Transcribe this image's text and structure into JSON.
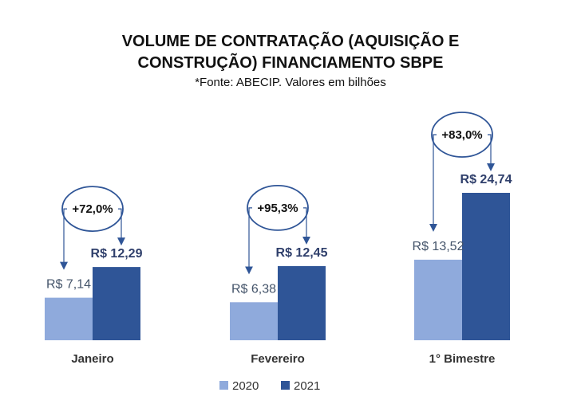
{
  "chart_data": {
    "type": "bar",
    "title_lines": [
      "VOLUME DE CONTRATAÇÃO (AQUISIÇÃO E",
      "CONSTRUÇÃO) FINANCIAMENTO SBPE"
    ],
    "subtitle": "*Fonte: ABECIP. Valores em bilhões",
    "categories": [
      "Janeiro",
      "Fevereiro",
      "1° Bimestre"
    ],
    "series": [
      {
        "name": "2020",
        "values": [
          7.14,
          6.38,
          13.52
        ],
        "labels": [
          "R$ 7,14",
          "R$ 6,38",
          "R$ 13,52"
        ],
        "color": "#8faadc"
      },
      {
        "name": "2021",
        "values": [
          12.29,
          12.45,
          24.74
        ],
        "labels": [
          "R$ 12,29",
          "R$ 12,45",
          "R$ 24,74"
        ],
        "color": "#2f5597"
      }
    ],
    "growth_labels": [
      "+72,0%",
      "+95,3%",
      "+83,0%"
    ],
    "ylim": [
      0,
      24.74
    ],
    "grid": false,
    "legend_position": "bottom-center"
  },
  "colors": {
    "arrow": "#2f5597",
    "ellipse_stroke": "#2f5597"
  }
}
